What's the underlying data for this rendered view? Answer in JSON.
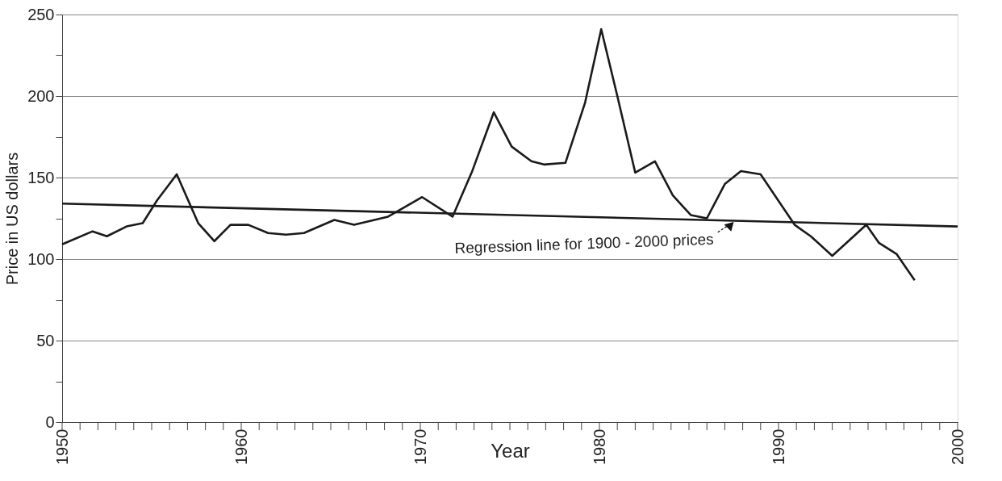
{
  "chart_data": {
    "type": "line",
    "xlabel": "Year",
    "ylabel": "Price in US dollars",
    "xlim": [
      1950,
      2000
    ],
    "ylim": [
      0,
      250
    ],
    "xticks": [
      1950,
      {
        "value": 1951,
        "label": null
      },
      {
        "value": 1952,
        "label": null
      },
      {
        "value": 1953,
        "label": null
      },
      {
        "value": 1954,
        "label": null
      },
      {
        "value": 1955,
        "label": null
      },
      {
        "value": 1956,
        "label": null
      },
      {
        "value": 1957,
        "label": null
      },
      {
        "value": 1958,
        "label": null
      },
      {
        "value": 1959,
        "label": null
      },
      1960,
      {
        "value": 1961,
        "label": null
      },
      {
        "value": 1962,
        "label": null
      },
      {
        "value": 1963,
        "label": null
      },
      {
        "value": 1964,
        "label": null
      },
      {
        "value": 1965,
        "label": null
      },
      {
        "value": 1966,
        "label": null
      },
      {
        "value": 1967,
        "label": null
      },
      {
        "value": 1968,
        "label": null
      },
      {
        "value": 1969,
        "label": null
      },
      1970,
      {
        "value": 1971,
        "label": null
      },
      {
        "value": 1972,
        "label": null
      },
      {
        "value": 1973,
        "label": null
      },
      {
        "value": 1974,
        "label": null
      },
      {
        "value": 1975,
        "label": null
      },
      {
        "value": 1976,
        "label": null
      },
      {
        "value": 1977,
        "label": null
      },
      {
        "value": 1978,
        "label": null
      },
      {
        "value": 1979,
        "label": null
      },
      1980,
      {
        "value": 1981,
        "label": null
      },
      {
        "value": 1982,
        "label": null
      },
      {
        "value": 1983,
        "label": null
      },
      {
        "value": 1984,
        "label": null
      },
      {
        "value": 1985,
        "label": null
      },
      {
        "value": 1986,
        "label": null
      },
      {
        "value": 1987,
        "label": null
      },
      {
        "value": 1988,
        "label": null
      },
      {
        "value": 1989,
        "label": null
      },
      1990,
      {
        "value": 1991,
        "label": null
      },
      {
        "value": 1992,
        "label": null
      },
      {
        "value": 1993,
        "label": null
      },
      {
        "value": 1994,
        "label": null
      },
      {
        "value": 1995,
        "label": null
      },
      {
        "value": 1996,
        "label": null
      },
      {
        "value": 1997,
        "label": null
      },
      {
        "value": 1998,
        "label": null
      },
      {
        "value": 1999,
        "label": null
      },
      2000
    ],
    "yticks": [
      0,
      {
        "value": 25,
        "label": null
      },
      50,
      {
        "value": 75,
        "label": null
      },
      100,
      {
        "value": 125,
        "label": null
      },
      150,
      {
        "value": 175,
        "label": null
      },
      200,
      {
        "value": 225,
        "label": null
      },
      250
    ],
    "grid": "y",
    "marker": "none",
    "line_style": "solid",
    "series": [
      {
        "color": "#1a1a1a",
        "x": [
          1950.0,
          1951.7,
          1952.5,
          1953.6,
          1954.5,
          1955.3,
          1956.4,
          1957.6,
          1958.5,
          1959.4,
          1960.4,
          1961.5,
          1962.5,
          1963.5,
          1965.2,
          1966.3,
          1968.2,
          1970.1,
          1971.8,
          1972.9,
          1974.1,
          1975.1,
          1976.2,
          1976.9,
          1978.1,
          1979.2,
          1980.1,
          1981.0,
          1982.0,
          1983.1,
          1984.1,
          1985.1,
          1986.0,
          1987.0,
          1987.9,
          1989.0,
          1990.9,
          1991.8,
          1993.0,
          1994.0,
          1994.9,
          1995.6,
          1996.6,
          1997.6
        ],
        "values": [
          109,
          117,
          114,
          120,
          122,
          136,
          152,
          122,
          111,
          121,
          121,
          116,
          115,
          116,
          124,
          121,
          126,
          138,
          126,
          154,
          190,
          169,
          160,
          158,
          159,
          196,
          241,
          200,
          153,
          160,
          139,
          127,
          125,
          146,
          154,
          152,
          121,
          114,
          102,
          112,
          121,
          110,
          103,
          87
        ]
      },
      {
        "type": "line",
        "color": "#1a1a1a",
        "x": [
          1950,
          2000
        ],
        "values": [
          134,
          120
        ]
      }
    ],
    "annotations": [
      {
        "text": "Regression line for 1900 - 2000 prices",
        "x": 1987.6,
        "y": 123.4
      }
    ]
  }
}
